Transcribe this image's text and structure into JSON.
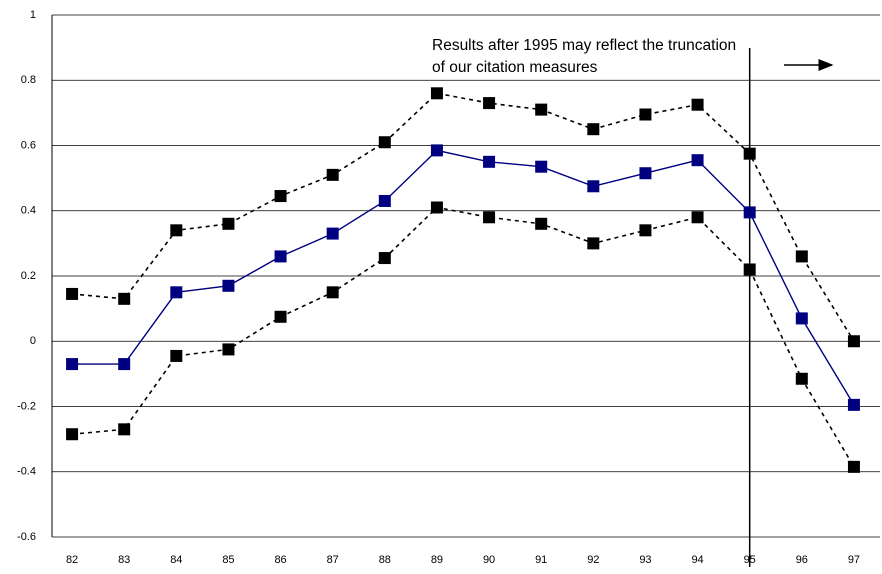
{
  "chart_data": {
    "type": "line",
    "categories": [
      "82",
      "83",
      "84",
      "85",
      "86",
      "87",
      "88",
      "89",
      "90",
      "91",
      "92",
      "93",
      "94",
      "95",
      "96",
      "97"
    ],
    "series": [
      {
        "color": "#000000",
        "line_style": "dashed",
        "values": [
          0.145,
          0.13,
          0.34,
          0.36,
          0.445,
          0.51,
          0.61,
          0.76,
          0.73,
          0.71,
          0.65,
          0.695,
          0.725,
          0.575,
          0.26,
          0.0
        ]
      },
      {
        "color": "#000080",
        "line_style": "solid",
        "values": [
          -0.07,
          -0.07,
          0.15,
          0.17,
          0.26,
          0.33,
          0.43,
          0.585,
          0.55,
          0.535,
          0.475,
          0.515,
          0.555,
          0.395,
          0.07,
          -0.195
        ]
      },
      {
        "color": "#000000",
        "line_style": "dashed",
        "values": [
          -0.285,
          -0.27,
          -0.045,
          -0.025,
          0.075,
          0.15,
          0.255,
          0.41,
          0.38,
          0.36,
          0.3,
          0.34,
          0.38,
          0.22,
          -0.115,
          -0.385
        ]
      }
    ],
    "ylim": [
      -0.6,
      1
    ],
    "yticks": [
      -0.6,
      -0.4,
      -0.2,
      0,
      0.2,
      0.4,
      0.6,
      0.8,
      1
    ],
    "grid": true,
    "annotation": [
      "Results after 1995 may reflect the truncation",
      "of our citation measures"
    ]
  }
}
